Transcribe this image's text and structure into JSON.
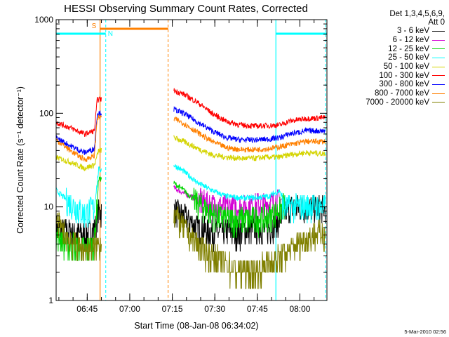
{
  "chart_data": {
    "type": "line",
    "title": "HESSI Observing Summary Count Rates, Corrected",
    "xlabel": "Start Time (08-Jan-08 06:34:02)",
    "ylabel": "Corrected Count Rate (s⁻¹ detector⁻¹)",
    "yscale": "log",
    "ylim": [
      1,
      1000
    ],
    "xlim_minutes": [
      0,
      95.5
    ],
    "x_ticks": [
      "06:45",
      "07:00",
      "07:15",
      "07:30",
      "07:45",
      "08:00"
    ],
    "y_ticks": [
      "1",
      "10",
      "100",
      "1000"
    ],
    "grid": false,
    "legend_placement": "right",
    "legend_header": [
      "Det 1,3,4,5,6,9,",
      "Att 0"
    ],
    "data_gap_minutes": [
      16,
      41.5
    ],
    "series": [
      {
        "name": "3 - 6 keV",
        "color": "#000000",
        "values": [
          {
            "x": 0,
            "y": 6
          },
          {
            "x": 5,
            "y": 5.5
          },
          {
            "x": 10,
            "y": 5
          },
          {
            "x": 13.5,
            "y": 6
          },
          {
            "x": 15,
            "y": 9
          },
          {
            "x": 41.5,
            "y": 9.5
          },
          {
            "x": 45,
            "y": 8
          },
          {
            "x": 50,
            "y": 6
          },
          {
            "x": 55,
            "y": 5.5
          },
          {
            "x": 60,
            "y": 5.5
          },
          {
            "x": 65,
            "y": 5.5
          },
          {
            "x": 70,
            "y": 6
          },
          {
            "x": 75,
            "y": 6
          },
          {
            "x": 78,
            "y": 7
          },
          {
            "x": 82,
            "y": 10
          },
          {
            "x": 88,
            "y": 10
          },
          {
            "x": 95,
            "y": 10
          }
        ]
      },
      {
        "name": "6 - 12 keV",
        "color": "#d400d4",
        "values": [
          {
            "x": 41.5,
            "y": 16
          },
          {
            "x": 45,
            "y": 14
          },
          {
            "x": 50,
            "y": 12
          },
          {
            "x": 55,
            "y": 10.5
          },
          {
            "x": 60,
            "y": 10
          },
          {
            "x": 65,
            "y": 10
          },
          {
            "x": 70,
            "y": 10.5
          },
          {
            "x": 75,
            "y": 11
          },
          {
            "x": 79,
            "y": 12
          },
          {
            "x": 81,
            "y": 12
          }
        ]
      },
      {
        "name": "12 - 25 keV",
        "color": "#00d400",
        "values": [
          {
            "x": 0,
            "y": 5
          },
          {
            "x": 5,
            "y": 4
          },
          {
            "x": 10,
            "y": 3.5
          },
          {
            "x": 13.5,
            "y": 4
          },
          {
            "x": 15,
            "y": 20
          },
          {
            "x": 41.5,
            "y": 18
          },
          {
            "x": 45,
            "y": 15
          },
          {
            "x": 50,
            "y": 11
          },
          {
            "x": 55,
            "y": 8.5
          },
          {
            "x": 60,
            "y": 7.5
          },
          {
            "x": 65,
            "y": 7.5
          },
          {
            "x": 70,
            "y": 7.5
          },
          {
            "x": 75,
            "y": 8
          },
          {
            "x": 79,
            "y": 9.5
          },
          {
            "x": 81,
            "y": 11
          }
        ]
      },
      {
        "name": "25 - 50 keV",
        "color": "#00ffff",
        "values": [
          {
            "x": 0,
            "y": 15
          },
          {
            "x": 5,
            "y": 11
          },
          {
            "x": 10,
            "y": 8.5
          },
          {
            "x": 13.5,
            "y": 10
          },
          {
            "x": 15,
            "y": 25
          },
          {
            "x": 41.5,
            "y": 28
          },
          {
            "x": 45,
            "y": 24
          },
          {
            "x": 50,
            "y": 18
          },
          {
            "x": 55,
            "y": 15
          },
          {
            "x": 60,
            "y": 13
          },
          {
            "x": 65,
            "y": 12.5
          },
          {
            "x": 70,
            "y": 12.5
          },
          {
            "x": 75,
            "y": 13
          },
          {
            "x": 79,
            "y": 15
          },
          {
            "x": 80,
            "y": 10
          },
          {
            "x": 88,
            "y": 10.5
          },
          {
            "x": 95,
            "y": 10
          }
        ]
      },
      {
        "name": "50 - 100 keV",
        "color": "#d4d400",
        "values": [
          {
            "x": 0,
            "y": 34
          },
          {
            "x": 5,
            "y": 30
          },
          {
            "x": 10,
            "y": 26
          },
          {
            "x": 13.5,
            "y": 28
          },
          {
            "x": 15,
            "y": 40
          },
          {
            "x": 41.5,
            "y": 55
          },
          {
            "x": 45,
            "y": 50
          },
          {
            "x": 50,
            "y": 42
          },
          {
            "x": 55,
            "y": 36
          },
          {
            "x": 60,
            "y": 34
          },
          {
            "x": 65,
            "y": 33
          },
          {
            "x": 70,
            "y": 33
          },
          {
            "x": 75,
            "y": 34
          },
          {
            "x": 79,
            "y": 34
          },
          {
            "x": 82,
            "y": 36
          },
          {
            "x": 88,
            "y": 38
          },
          {
            "x": 95,
            "y": 37
          }
        ]
      },
      {
        "name": "100 - 300 keV",
        "color": "#ff0000",
        "values": [
          {
            "x": 0,
            "y": 80
          },
          {
            "x": 5,
            "y": 70
          },
          {
            "x": 10,
            "y": 60
          },
          {
            "x": 13.5,
            "y": 65
          },
          {
            "x": 14.5,
            "y": 140
          },
          {
            "x": 41.5,
            "y": 175
          },
          {
            "x": 45,
            "y": 160
          },
          {
            "x": 50,
            "y": 130
          },
          {
            "x": 55,
            "y": 100
          },
          {
            "x": 60,
            "y": 82
          },
          {
            "x": 65,
            "y": 75
          },
          {
            "x": 70,
            "y": 73
          },
          {
            "x": 75,
            "y": 74
          },
          {
            "x": 79,
            "y": 75
          },
          {
            "x": 82,
            "y": 82
          },
          {
            "x": 88,
            "y": 88
          },
          {
            "x": 95,
            "y": 90
          }
        ]
      },
      {
        "name": "300 - 800 keV",
        "color": "#0000ff",
        "values": [
          {
            "x": 0,
            "y": 55
          },
          {
            "x": 5,
            "y": 45
          },
          {
            "x": 10,
            "y": 38
          },
          {
            "x": 13.5,
            "y": 42
          },
          {
            "x": 14.5,
            "y": 100
          },
          {
            "x": 41.5,
            "y": 110
          },
          {
            "x": 45,
            "y": 100
          },
          {
            "x": 50,
            "y": 80
          },
          {
            "x": 55,
            "y": 65
          },
          {
            "x": 60,
            "y": 55
          },
          {
            "x": 65,
            "y": 52
          },
          {
            "x": 70,
            "y": 52
          },
          {
            "x": 75,
            "y": 53
          },
          {
            "x": 79,
            "y": 55
          },
          {
            "x": 82,
            "y": 60
          },
          {
            "x": 88,
            "y": 65
          },
          {
            "x": 95,
            "y": 65
          }
        ]
      },
      {
        "name": "800 - 7000 keV",
        "color": "#ff8000",
        "values": [
          {
            "x": 0,
            "y": 52
          },
          {
            "x": 5,
            "y": 40
          },
          {
            "x": 10,
            "y": 32
          },
          {
            "x": 13.5,
            "y": 35
          },
          {
            "x": 14.5,
            "y": 90
          },
          {
            "x": 41.5,
            "y": 88
          },
          {
            "x": 45,
            "y": 78
          },
          {
            "x": 50,
            "y": 62
          },
          {
            "x": 55,
            "y": 50
          },
          {
            "x": 60,
            "y": 43
          },
          {
            "x": 65,
            "y": 41
          },
          {
            "x": 70,
            "y": 41
          },
          {
            "x": 75,
            "y": 42
          },
          {
            "x": 79,
            "y": 44
          },
          {
            "x": 82,
            "y": 46
          },
          {
            "x": 88,
            "y": 50
          },
          {
            "x": 95,
            "y": 50
          }
        ]
      },
      {
        "name": "7000 - 20000 keV",
        "color": "#808000",
        "values": [
          {
            "x": 0,
            "y": 7
          },
          {
            "x": 5,
            "y": 4.5
          },
          {
            "x": 9,
            "y": 3.5
          },
          {
            "x": 13,
            "y": 3.5
          },
          {
            "x": 14.5,
            "y": 4
          },
          {
            "x": 41.5,
            "y": 9
          },
          {
            "x": 45,
            "y": 6
          },
          {
            "x": 50,
            "y": 4
          },
          {
            "x": 55,
            "y": 3
          },
          {
            "x": 60,
            "y": 2.5
          },
          {
            "x": 65,
            "y": 2
          },
          {
            "x": 70,
            "y": 2
          },
          {
            "x": 75,
            "y": 2.5
          },
          {
            "x": 80,
            "y": 3
          },
          {
            "x": 85,
            "y": 4
          },
          {
            "x": 90,
            "y": 5
          },
          {
            "x": 95,
            "y": 5.5
          }
        ]
      }
    ],
    "markers": [
      {
        "label": "S",
        "color": "#ff8000",
        "x_start": 15.5,
        "x_end": 39.5,
        "style": "saa"
      },
      {
        "label": "N",
        "color": "#00ffff",
        "x_start": 0,
        "x_end": 17.5,
        "style": "night"
      },
      {
        "label": "",
        "color": "#00ffff",
        "x_start": 77.5,
        "x_end": 95.5,
        "style": "night"
      }
    ]
  },
  "legend_order": [
    7,
    6,
    5,
    4,
    3,
    2,
    1,
    0
  ],
  "timestamp": "5-Mar-2010 02:56"
}
